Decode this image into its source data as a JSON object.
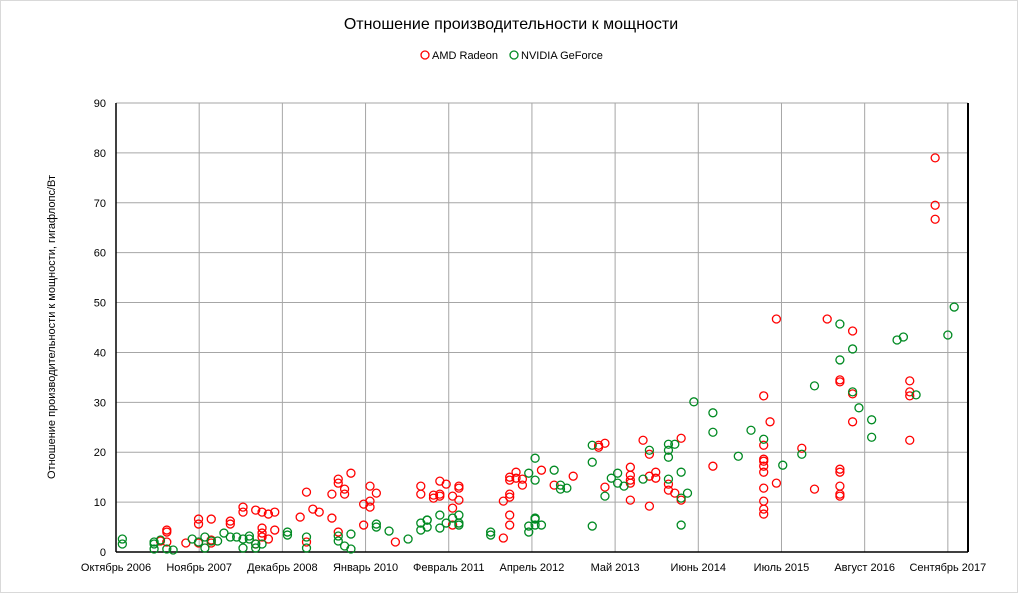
{
  "chart_data": {
    "type": "scatter",
    "title": "Отношение производительности к мощности",
    "xlabel": "",
    "ylabel": "Отношение производительности к мощности, гигафлопс/Вт",
    "ylim": [
      0,
      90
    ],
    "yticks": [
      "0",
      "10",
      "20",
      "30",
      "40",
      "50",
      "60",
      "70",
      "80",
      "90"
    ],
    "xticks": [
      "Октябрь 2006",
      "Ноябрь 2007",
      "Декабрь 2008",
      "Январь 2010",
      "Февраль 2011",
      "Апрель 2012",
      "Май 2013",
      "Июнь 2014",
      "Июль 2015",
      "Август 2016",
      "Сентябрь 2017"
    ],
    "x_axis": "date",
    "grid": true,
    "legend_position": "top",
    "marker": "hollow-circle",
    "series": [
      {
        "name": "AMD Radeon",
        "color": "#ff0000",
        "points": [
          [
            "2007-05",
            2.2
          ],
          [
            "2007-06",
            4.4
          ],
          [
            "2007-06",
            4.0
          ],
          [
            "2007-06",
            2.0
          ],
          [
            "2007-09",
            1.8
          ],
          [
            "2007-11",
            1.8
          ],
          [
            "2007-11",
            5.6
          ],
          [
            "2007-11",
            6.6
          ],
          [
            "2008-01",
            6.6
          ],
          [
            "2008-01",
            2.4
          ],
          [
            "2008-01",
            1.8
          ],
          [
            "2008-04",
            5.6
          ],
          [
            "2008-04",
            6.2
          ],
          [
            "2008-06",
            9.0
          ],
          [
            "2008-06",
            8.0
          ],
          [
            "2008-08",
            8.4
          ],
          [
            "2008-09",
            8.0
          ],
          [
            "2008-10",
            7.6
          ],
          [
            "2008-11",
            8.0
          ],
          [
            "2008-09",
            4.8
          ],
          [
            "2008-09",
            3.8
          ],
          [
            "2008-09",
            3.0
          ],
          [
            "2008-10",
            2.6
          ],
          [
            "2008-08",
            1.6
          ],
          [
            "2008-11",
            4.4
          ],
          [
            "2009-04",
            12.0
          ],
          [
            "2009-03",
            7.0
          ],
          [
            "2009-05",
            8.6
          ],
          [
            "2009-06",
            8.0
          ],
          [
            "2009-04",
            2.0
          ],
          [
            "2009-09",
            14.6
          ],
          [
            "2009-09",
            13.8
          ],
          [
            "2009-08",
            11.6
          ],
          [
            "2009-10",
            12.6
          ],
          [
            "2009-10",
            11.6
          ],
          [
            "2009-11",
            15.8
          ],
          [
            "2009-08",
            6.8
          ],
          [
            "2009-09",
            4.0
          ],
          [
            "2010-01",
            9.6
          ],
          [
            "2010-02",
            9.0
          ],
          [
            "2010-02",
            13.2
          ],
          [
            "2010-03",
            11.8
          ],
          [
            "2010-02",
            10.2
          ],
          [
            "2010-01",
            5.4
          ],
          [
            "2010-06",
            2.0
          ],
          [
            "2010-10",
            13.2
          ],
          [
            "2010-10",
            11.6
          ],
          [
            "2010-12",
            11.4
          ],
          [
            "2010-12",
            10.8
          ],
          [
            "2011-01",
            11.6
          ],
          [
            "2011-01",
            11.2
          ],
          [
            "2011-01",
            14.2
          ],
          [
            "2011-02",
            13.6
          ],
          [
            "2011-04",
            12.8
          ],
          [
            "2011-04",
            13.2
          ],
          [
            "2011-03",
            11.2
          ],
          [
            "2011-04",
            10.4
          ],
          [
            "2011-03",
            8.8
          ],
          [
            "2011-03",
            5.4
          ],
          [
            "2011-11",
            2.8
          ],
          [
            "2011-11",
            10.2
          ],
          [
            "2011-12",
            11.6
          ],
          [
            "2011-12",
            11.0
          ],
          [
            "2011-12",
            7.4
          ],
          [
            "2011-12",
            5.4
          ],
          [
            "2011-12",
            15.0
          ],
          [
            "2011-12",
            14.4
          ],
          [
            "2012-01",
            16.0
          ],
          [
            "2012-01",
            14.8
          ],
          [
            "2012-02",
            14.6
          ],
          [
            "2012-02",
            13.4
          ],
          [
            "2012-05",
            16.4
          ],
          [
            "2012-07",
            13.4
          ],
          [
            "2012-10",
            15.2
          ],
          [
            "2013-02",
            21.4
          ],
          [
            "2013-02",
            21.0
          ],
          [
            "2013-03",
            21.8
          ],
          [
            "2013-03",
            13.0
          ],
          [
            "2013-07",
            17.0
          ],
          [
            "2013-07",
            15.4
          ],
          [
            "2013-07",
            14.4
          ],
          [
            "2013-07",
            13.8
          ],
          [
            "2013-07",
            10.4
          ],
          [
            "2013-09",
            22.4
          ],
          [
            "2013-10",
            19.6
          ],
          [
            "2013-10",
            9.2
          ],
          [
            "2013-10",
            15.2
          ],
          [
            "2013-11",
            16.0
          ],
          [
            "2013-11",
            14.8
          ],
          [
            "2014-01",
            13.6
          ],
          [
            "2014-01",
            12.4
          ],
          [
            "2014-02",
            11.8
          ],
          [
            "2014-03",
            22.8
          ],
          [
            "2014-03",
            10.4
          ],
          [
            "2014-08",
            17.2
          ],
          [
            "2015-04",
            31.3
          ],
          [
            "2015-05",
            26.1
          ],
          [
            "2015-04",
            21.4
          ],
          [
            "2015-04",
            18.2
          ],
          [
            "2015-04",
            18.6
          ],
          [
            "2015-04",
            17.2
          ],
          [
            "2015-04",
            16.0
          ],
          [
            "2015-04",
            12.8
          ],
          [
            "2015-04",
            10.2
          ],
          [
            "2015-04",
            8.6
          ],
          [
            "2015-04",
            7.6
          ],
          [
            "2015-06",
            46.7
          ],
          [
            "2015-06",
            13.8
          ],
          [
            "2015-10",
            20.8
          ],
          [
            "2015-12",
            12.6
          ],
          [
            "2016-02",
            46.7
          ],
          [
            "2016-04",
            34.5
          ],
          [
            "2016-04",
            34.1
          ],
          [
            "2016-04",
            16.6
          ],
          [
            "2016-04",
            16.0
          ],
          [
            "2016-04",
            13.2
          ],
          [
            "2016-04",
            11.6
          ],
          [
            "2016-04",
            11.2
          ],
          [
            "2016-06",
            44.3
          ],
          [
            "2016-06",
            31.7
          ],
          [
            "2016-06",
            26.1
          ],
          [
            "2017-03",
            32.1
          ],
          [
            "2017-03",
            31.3
          ],
          [
            "2017-03",
            22.4
          ],
          [
            "2017-03",
            34.3
          ],
          [
            "2017-07",
            69.5
          ],
          [
            "2017-07",
            66.7
          ],
          [
            "2017-07",
            79.0
          ]
        ]
      },
      {
        "name": "NVIDIA GeForce",
        "color": "#008a22",
        "points": [
          [
            "2006-11",
            2.6
          ],
          [
            "2006-11",
            1.6
          ],
          [
            "2007-04",
            1.6
          ],
          [
            "2007-04",
            2.0
          ],
          [
            "2007-05",
            2.4
          ],
          [
            "2007-04",
            0.6
          ],
          [
            "2007-06",
            0.6
          ],
          [
            "2007-07",
            0.4
          ],
          [
            "2007-10",
            2.6
          ],
          [
            "2007-11",
            2.0
          ],
          [
            "2007-12",
            0.8
          ],
          [
            "2007-12",
            3.0
          ],
          [
            "2008-01",
            2.2
          ],
          [
            "2008-02",
            2.2
          ],
          [
            "2008-03",
            3.8
          ],
          [
            "2008-04",
            3.0
          ],
          [
            "2008-05",
            3.0
          ],
          [
            "2008-06",
            0.8
          ],
          [
            "2008-06",
            2.6
          ],
          [
            "2008-07",
            2.6
          ],
          [
            "2008-07",
            3.2
          ],
          [
            "2008-08",
            1.6
          ],
          [
            "2008-08",
            0.8
          ],
          [
            "2008-09",
            1.6
          ],
          [
            "2009-01",
            4.0
          ],
          [
            "2009-01",
            3.4
          ],
          [
            "2009-04",
            3.0
          ],
          [
            "2009-04",
            0.8
          ],
          [
            "2009-09",
            3.2
          ],
          [
            "2009-09",
            2.2
          ],
          [
            "2009-10",
            1.2
          ],
          [
            "2009-11",
            3.6
          ],
          [
            "2009-11",
            0.6
          ],
          [
            "2010-03",
            5.6
          ],
          [
            "2010-03",
            5.0
          ],
          [
            "2010-05",
            4.2
          ],
          [
            "2010-08",
            2.6
          ],
          [
            "2010-10",
            5.8
          ],
          [
            "2010-10",
            4.4
          ],
          [
            "2010-11",
            6.4
          ],
          [
            "2010-11",
            5.0
          ],
          [
            "2010-11",
            6.4
          ],
          [
            "2011-01",
            7.4
          ],
          [
            "2011-01",
            4.8
          ],
          [
            "2011-02",
            5.8
          ],
          [
            "2011-03",
            6.8
          ],
          [
            "2011-04",
            7.4
          ],
          [
            "2011-04",
            5.8
          ],
          [
            "2011-04",
            5.4
          ],
          [
            "2011-09",
            3.4
          ],
          [
            "2011-09",
            4.0
          ],
          [
            "2012-03",
            15.8
          ],
          [
            "2012-04",
            18.8
          ],
          [
            "2012-04",
            14.4
          ],
          [
            "2012-03",
            4.0
          ],
          [
            "2012-03",
            5.2
          ],
          [
            "2012-04",
            6.6
          ],
          [
            "2012-04",
            6.8
          ],
          [
            "2012-04",
            5.4
          ],
          [
            "2012-05",
            5.4
          ],
          [
            "2012-07",
            16.4
          ],
          [
            "2012-08",
            13.4
          ],
          [
            "2012-08",
            12.6
          ],
          [
            "2012-09",
            12.8
          ],
          [
            "2013-01",
            21.4
          ],
          [
            "2013-01",
            18.0
          ],
          [
            "2013-01",
            5.2
          ],
          [
            "2013-03",
            11.2
          ],
          [
            "2013-04",
            14.8
          ],
          [
            "2013-05",
            15.8
          ],
          [
            "2013-05",
            13.8
          ],
          [
            "2013-06",
            13.2
          ],
          [
            "2013-09",
            14.6
          ],
          [
            "2013-10",
            20.4
          ],
          [
            "2014-01",
            21.6
          ],
          [
            "2014-01",
            20.4
          ],
          [
            "2014-01",
            19.0
          ],
          [
            "2014-02",
            21.6
          ],
          [
            "2014-03",
            16.0
          ],
          [
            "2014-01",
            14.6
          ],
          [
            "2014-03",
            10.8
          ],
          [
            "2014-04",
            11.8
          ],
          [
            "2014-03",
            5.4
          ],
          [
            "2014-05",
            30.1
          ],
          [
            "2014-08",
            27.9
          ],
          [
            "2014-08",
            24.0
          ],
          [
            "2014-12",
            19.2
          ],
          [
            "2015-02",
            24.4
          ],
          [
            "2015-04",
            22.6
          ],
          [
            "2015-07",
            17.4
          ],
          [
            "2015-10",
            19.6
          ],
          [
            "2015-12",
            33.3
          ],
          [
            "2016-04",
            45.7
          ],
          [
            "2016-04",
            38.5
          ],
          [
            "2016-06",
            32.1
          ],
          [
            "2016-06",
            40.7
          ],
          [
            "2016-07",
            28.9
          ],
          [
            "2016-09",
            26.5
          ],
          [
            "2016-09",
            23.0
          ],
          [
            "2017-01",
            42.5
          ],
          [
            "2017-02",
            43.1
          ],
          [
            "2017-04",
            31.5
          ],
          [
            "2017-09",
            43.5
          ],
          [
            "2017-10",
            49.1
          ]
        ]
      }
    ]
  }
}
